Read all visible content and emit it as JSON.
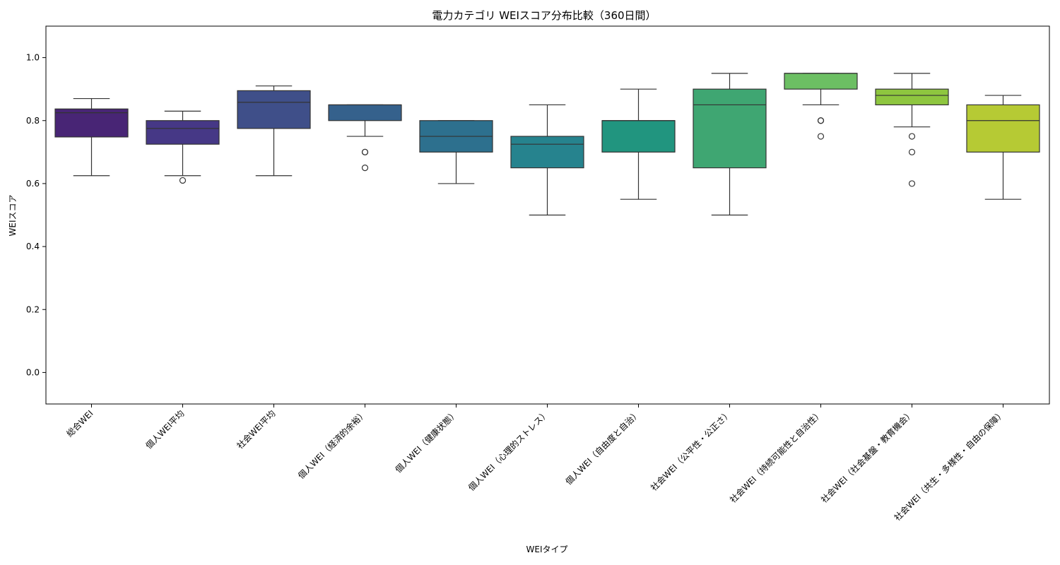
{
  "chart_data": {
    "type": "box",
    "title": "電力カテゴリ WEIスコア分布比較（360日間）",
    "xlabel": "WEIタイプ",
    "ylabel": "WEIスコア",
    "ylim": [
      -0.1,
      1.1
    ],
    "yticks": [
      0.0,
      0.2,
      0.4,
      0.6,
      0.8,
      1.0
    ],
    "ytick_labels": [
      "0.0",
      "0.2",
      "0.4",
      "0.6",
      "0.8",
      "1.0"
    ],
    "grid": false,
    "palette": "viridis",
    "boxes": [
      {
        "category": "総合WEI",
        "whisker_low": 0.625,
        "q1": 0.748,
        "median": 0.825,
        "q3": 0.837,
        "whisker_high": 0.87,
        "outliers": [],
        "color": "#482575"
      },
      {
        "category": "個人WEI平均",
        "whisker_low": 0.625,
        "q1": 0.725,
        "median": 0.775,
        "q3": 0.8,
        "whisker_high": 0.83,
        "outliers": [
          0.61
        ],
        "color": "#463886"
      },
      {
        "category": "社会WEI平均",
        "whisker_low": 0.625,
        "q1": 0.775,
        "median": 0.858,
        "q3": 0.895,
        "whisker_high": 0.91,
        "outliers": [],
        "color": "#3f4f89"
      },
      {
        "category": "個人WEI（経済的余裕）",
        "whisker_low": 0.75,
        "q1": 0.8,
        "median": 0.85,
        "q3": 0.85,
        "whisker_high": 0.85,
        "outliers": [
          0.7,
          0.7,
          0.65
        ],
        "color": "#35618c"
      },
      {
        "category": "個人WEI（健康状態）",
        "whisker_low": 0.6,
        "q1": 0.7,
        "median": 0.75,
        "q3": 0.8,
        "whisker_high": 0.8,
        "outliers": [],
        "color": "#2d708e"
      },
      {
        "category": "個人WEI（心理的ストレス）",
        "whisker_low": 0.5,
        "q1": 0.65,
        "median": 0.725,
        "q3": 0.75,
        "whisker_high": 0.85,
        "outliers": [],
        "color": "#26838e"
      },
      {
        "category": "個人WEI（自由度と自治）",
        "whisker_low": 0.55,
        "q1": 0.7,
        "median": 0.8,
        "q3": 0.8,
        "whisker_high": 0.9,
        "outliers": [],
        "color": "#21957f"
      },
      {
        "category": "社会WEI（公平性・公正さ）",
        "whisker_low": 0.5,
        "q1": 0.65,
        "median": 0.85,
        "q3": 0.9,
        "whisker_high": 0.95,
        "outliers": [],
        "color": "#3fa672"
      },
      {
        "category": "社会WEI（持続可能性と自治性）",
        "whisker_low": 0.85,
        "q1": 0.9,
        "median": 0.95,
        "q3": 0.95,
        "whisker_high": 0.95,
        "outliers": [
          0.8,
          0.8,
          0.75
        ],
        "color": "#6cbf63"
      },
      {
        "category": "社会WEI（社会基盤・教育機会）",
        "whisker_low": 0.78,
        "q1": 0.85,
        "median": 0.88,
        "q3": 0.9,
        "whisker_high": 0.95,
        "outliers": [
          0.75,
          0.7,
          0.6
        ],
        "color": "#8ec63f"
      },
      {
        "category": "社会WEI（共生・多様性・自由の保障）",
        "whisker_low": 0.55,
        "q1": 0.7,
        "median": 0.8,
        "q3": 0.85,
        "whisker_high": 0.88,
        "outliers": [],
        "color": "#b6ca34"
      }
    ]
  }
}
